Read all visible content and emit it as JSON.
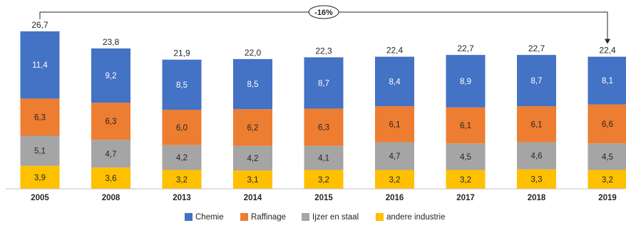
{
  "chart_data": {
    "type": "bar",
    "stacked": true,
    "categories": [
      "2005",
      "2008",
      "2013",
      "2014",
      "2015",
      "2016",
      "2017",
      "2018",
      "2019"
    ],
    "series": [
      {
        "name": "andere industrie",
        "color": "#FFC000",
        "values": [
          3.9,
          3.6,
          3.2,
          3.1,
          3.2,
          3.2,
          3.2,
          3.3,
          3.2
        ],
        "labels": [
          "3,9",
          "3,6",
          "3,2",
          "3,1",
          "3,2",
          "3,2",
          "3,2",
          "3,3",
          "3,2"
        ]
      },
      {
        "name": "Ijzer en staal",
        "color": "#A5A5A5",
        "values": [
          5.1,
          4.7,
          4.2,
          4.2,
          4.1,
          4.7,
          4.5,
          4.6,
          4.5
        ],
        "labels": [
          "5,1",
          "4,7",
          "4,2",
          "4,2",
          "4,1",
          "4,7",
          "4,5",
          "4,6",
          "4,5"
        ]
      },
      {
        "name": "Raffinage",
        "color": "#ED7D31",
        "values": [
          6.3,
          6.3,
          6.0,
          6.2,
          6.3,
          6.1,
          6.1,
          6.1,
          6.6
        ],
        "labels": [
          "6,3",
          "6,3",
          "6,0",
          "6,2",
          "6,3",
          "6,1",
          "6,1",
          "6,1",
          "6,6"
        ]
      },
      {
        "name": "Chemie",
        "color": "#4472C4",
        "values": [
          11.4,
          9.2,
          8.5,
          8.5,
          8.7,
          8.4,
          8.9,
          8.7,
          8.1
        ],
        "labels": [
          "11,4",
          "9,2",
          "8,5",
          "8,5",
          "8,7",
          "8,4",
          "8,9",
          "8,7",
          "8,1"
        ]
      }
    ],
    "totals": [
      26.7,
      23.8,
      21.9,
      22.0,
      22.3,
      22.4,
      22.7,
      22.7,
      22.4
    ],
    "total_labels": [
      "26,7",
      "23,8",
      "21,9",
      "22,0",
      "22,3",
      "22,4",
      "22,7",
      "22,7",
      "22,4"
    ],
    "legend": {
      "placement": "bottom",
      "order": [
        "Chemie",
        "Raffinage",
        "Ijzer en staal",
        "andere industrie"
      ]
    },
    "annotation": {
      "text": "-16%",
      "from": "2005",
      "to": "2019"
    },
    "ylim": [
      0,
      28
    ],
    "grid": false
  }
}
